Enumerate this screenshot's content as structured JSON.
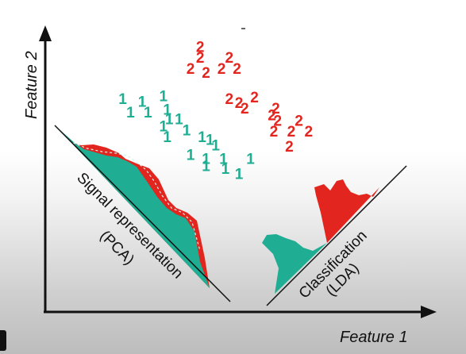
{
  "labels": {
    "y_axis": "Feature 2",
    "x_axis": "Feature 1",
    "pca_line1": "Signal representation",
    "pca_line2": "(PCA)",
    "lda_line1": "Classification",
    "lda_line2": "(LDA)"
  },
  "colors": {
    "class1": "#1fae93",
    "class2": "#e2261f",
    "axis": "#111111"
  },
  "class1_points": [
    {
      "label": "1",
      "x": 2.0,
      "y": 7.6
    },
    {
      "label": "1",
      "x": 2.5,
      "y": 7.5
    },
    {
      "label": "1",
      "x": 3.05,
      "y": 7.7
    },
    {
      "label": "1",
      "x": 2.2,
      "y": 7.1
    },
    {
      "label": "1",
      "x": 2.65,
      "y": 7.1
    },
    {
      "label": "1",
      "x": 3.15,
      "y": 7.2
    },
    {
      "label": "1",
      "x": 3.2,
      "y": 6.85
    },
    {
      "label": "1",
      "x": 3.45,
      "y": 6.85
    },
    {
      "label": "1",
      "x": 3.05,
      "y": 6.6
    },
    {
      "label": "1",
      "x": 3.65,
      "y": 6.45
    },
    {
      "label": "1",
      "x": 3.15,
      "y": 6.2
    },
    {
      "label": "1",
      "x": 4.05,
      "y": 6.2
    },
    {
      "label": "1",
      "x": 4.25,
      "y": 6.1
    },
    {
      "label": "1",
      "x": 4.4,
      "y": 5.9
    },
    {
      "label": "1",
      "x": 3.75,
      "y": 5.55
    },
    {
      "label": "1",
      "x": 4.15,
      "y": 5.4
    },
    {
      "label": "1",
      "x": 4.6,
      "y": 5.4
    },
    {
      "label": "1",
      "x": 5.3,
      "y": 5.4
    },
    {
      "label": "1",
      "x": 4.15,
      "y": 5.15
    },
    {
      "label": "1",
      "x": 4.65,
      "y": 5.05
    },
    {
      "label": "1",
      "x": 5.0,
      "y": 4.85
    }
  ],
  "class2_points": [
    {
      "label": "2",
      "x": 4.0,
      "y": 9.5
    },
    {
      "label": "2",
      "x": 4.0,
      "y": 9.1
    },
    {
      "label": "2",
      "x": 4.75,
      "y": 9.1
    },
    {
      "label": "2",
      "x": 3.75,
      "y": 8.7
    },
    {
      "label": "2",
      "x": 4.15,
      "y": 8.55
    },
    {
      "label": "2",
      "x": 4.55,
      "y": 8.7
    },
    {
      "label": "2",
      "x": 4.95,
      "y": 8.7
    },
    {
      "label": "2",
      "x": 4.75,
      "y": 7.6
    },
    {
      "label": "2",
      "x": 5.0,
      "y": 7.45
    },
    {
      "label": "2",
      "x": 5.4,
      "y": 7.65
    },
    {
      "label": "2",
      "x": 5.15,
      "y": 7.25
    },
    {
      "label": "2",
      "x": 5.95,
      "y": 7.25
    },
    {
      "label": "2",
      "x": 5.85,
      "y": 7.0
    },
    {
      "label": "2",
      "x": 6.0,
      "y": 6.8
    },
    {
      "label": "2",
      "x": 6.55,
      "y": 6.8
    },
    {
      "label": "2",
      "x": 5.9,
      "y": 6.4
    },
    {
      "label": "2",
      "x": 6.35,
      "y": 6.4
    },
    {
      "label": "2",
      "x": 6.8,
      "y": 6.4
    },
    {
      "label": "2",
      "x": 6.3,
      "y": 5.85
    }
  ]
}
